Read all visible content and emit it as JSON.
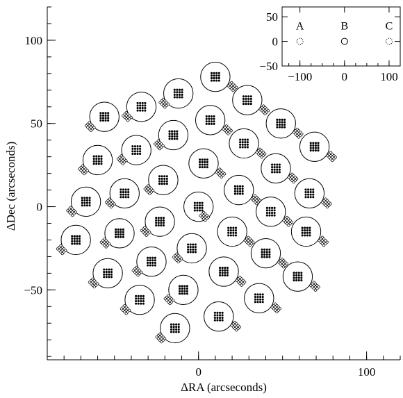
{
  "chart_data": {
    "type": "scatter",
    "xlabel": "ΔRA (arcseconds)",
    "ylabel": "ΔDec (arcseconds)",
    "xlim": [
      -90,
      120
    ],
    "ylim": [
      -92,
      120
    ],
    "x_ticks": [
      0,
      100
    ],
    "y_ticks": [
      -50,
      0,
      50,
      100
    ],
    "grid": false,
    "fibre_bundle_radius": 7,
    "bundles": [
      {
        "x": 10,
        "y": 78
      },
      {
        "x": 29,
        "y": 64
      },
      {
        "x": -12,
        "y": 68
      },
      {
        "x": -34,
        "y": 60
      },
      {
        "x": -56,
        "y": 54
      },
      {
        "x": 7,
        "y": 52
      },
      {
        "x": 49,
        "y": 50
      },
      {
        "x": -15,
        "y": 43
      },
      {
        "x": 27,
        "y": 38
      },
      {
        "x": -37,
        "y": 34
      },
      {
        "x": 69,
        "y": 36
      },
      {
        "x": -60,
        "y": 28
      },
      {
        "x": 3,
        "y": 26
      },
      {
        "x": 46,
        "y": 23
      },
      {
        "x": -21,
        "y": 16
      },
      {
        "x": 66,
        "y": 8
      },
      {
        "x": -44,
        "y": 8
      },
      {
        "x": 24,
        "y": 10
      },
      {
        "x": -67,
        "y": 3
      },
      {
        "x": 0,
        "y": 0
      },
      {
        "x": 43,
        "y": -3
      },
      {
        "x": -23,
        "y": -9
      },
      {
        "x": 20,
        "y": -15
      },
      {
        "x": -47,
        "y": -16
      },
      {
        "x": 64,
        "y": -15
      },
      {
        "x": -73,
        "y": -20
      },
      {
        "x": -4,
        "y": -25
      },
      {
        "x": 40,
        "y": -28
      },
      {
        "x": -28,
        "y": -33
      },
      {
        "x": 15,
        "y": -39
      },
      {
        "x": -54,
        "y": -40
      },
      {
        "x": 59,
        "y": -42
      },
      {
        "x": -9,
        "y": -50
      },
      {
        "x": 36,
        "y": -55
      },
      {
        "x": -35,
        "y": -56
      },
      {
        "x": 12,
        "y": -66
      },
      {
        "x": -14,
        "y": -73
      }
    ],
    "sky_offset": {
      "x": -4,
      "y": 7
    },
    "inset": {
      "xlim": [
        -140,
        125
      ],
      "ylim": [
        -50,
        70
      ],
      "x_ticks": [
        -100,
        0,
        100
      ],
      "y_ticks": [
        -50,
        0,
        50
      ],
      "points": [
        {
          "label": "A",
          "x": -100,
          "y": 0,
          "style": "dotted"
        },
        {
          "label": "B",
          "x": 0,
          "y": 0,
          "style": "solid"
        },
        {
          "label": "C",
          "x": 100,
          "y": 0,
          "style": "dotted"
        }
      ]
    }
  }
}
